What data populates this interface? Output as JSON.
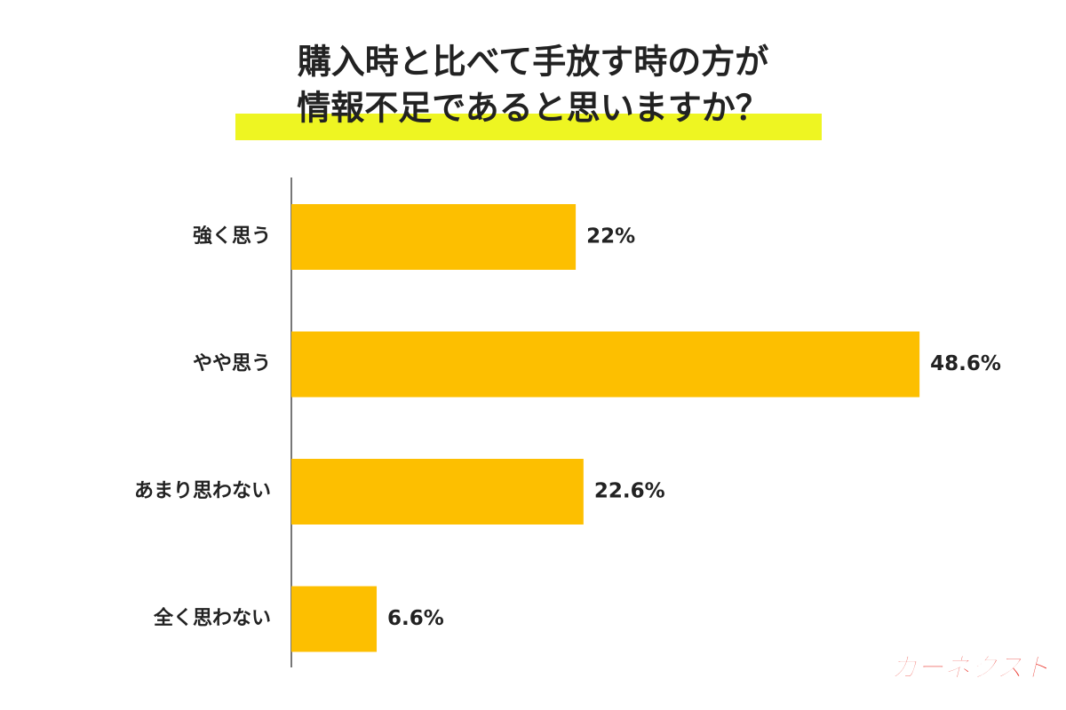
{
  "chart_data": {
    "type": "bar",
    "orientation": "horizontal",
    "title": [
      "購入時と比べて手放す時の方が",
      "情報不足であると思いますか？"
    ],
    "categories": [
      "強く思う",
      "やや思う",
      "あまり思わない",
      "全く思わない"
    ],
    "values": [
      22,
      48.6,
      22.6,
      6.6
    ],
    "value_labels": [
      "22%",
      "48.6%",
      "22.6%",
      "6.6%"
    ],
    "color": "#fdbf00"
  },
  "logo": "カーネクスト"
}
